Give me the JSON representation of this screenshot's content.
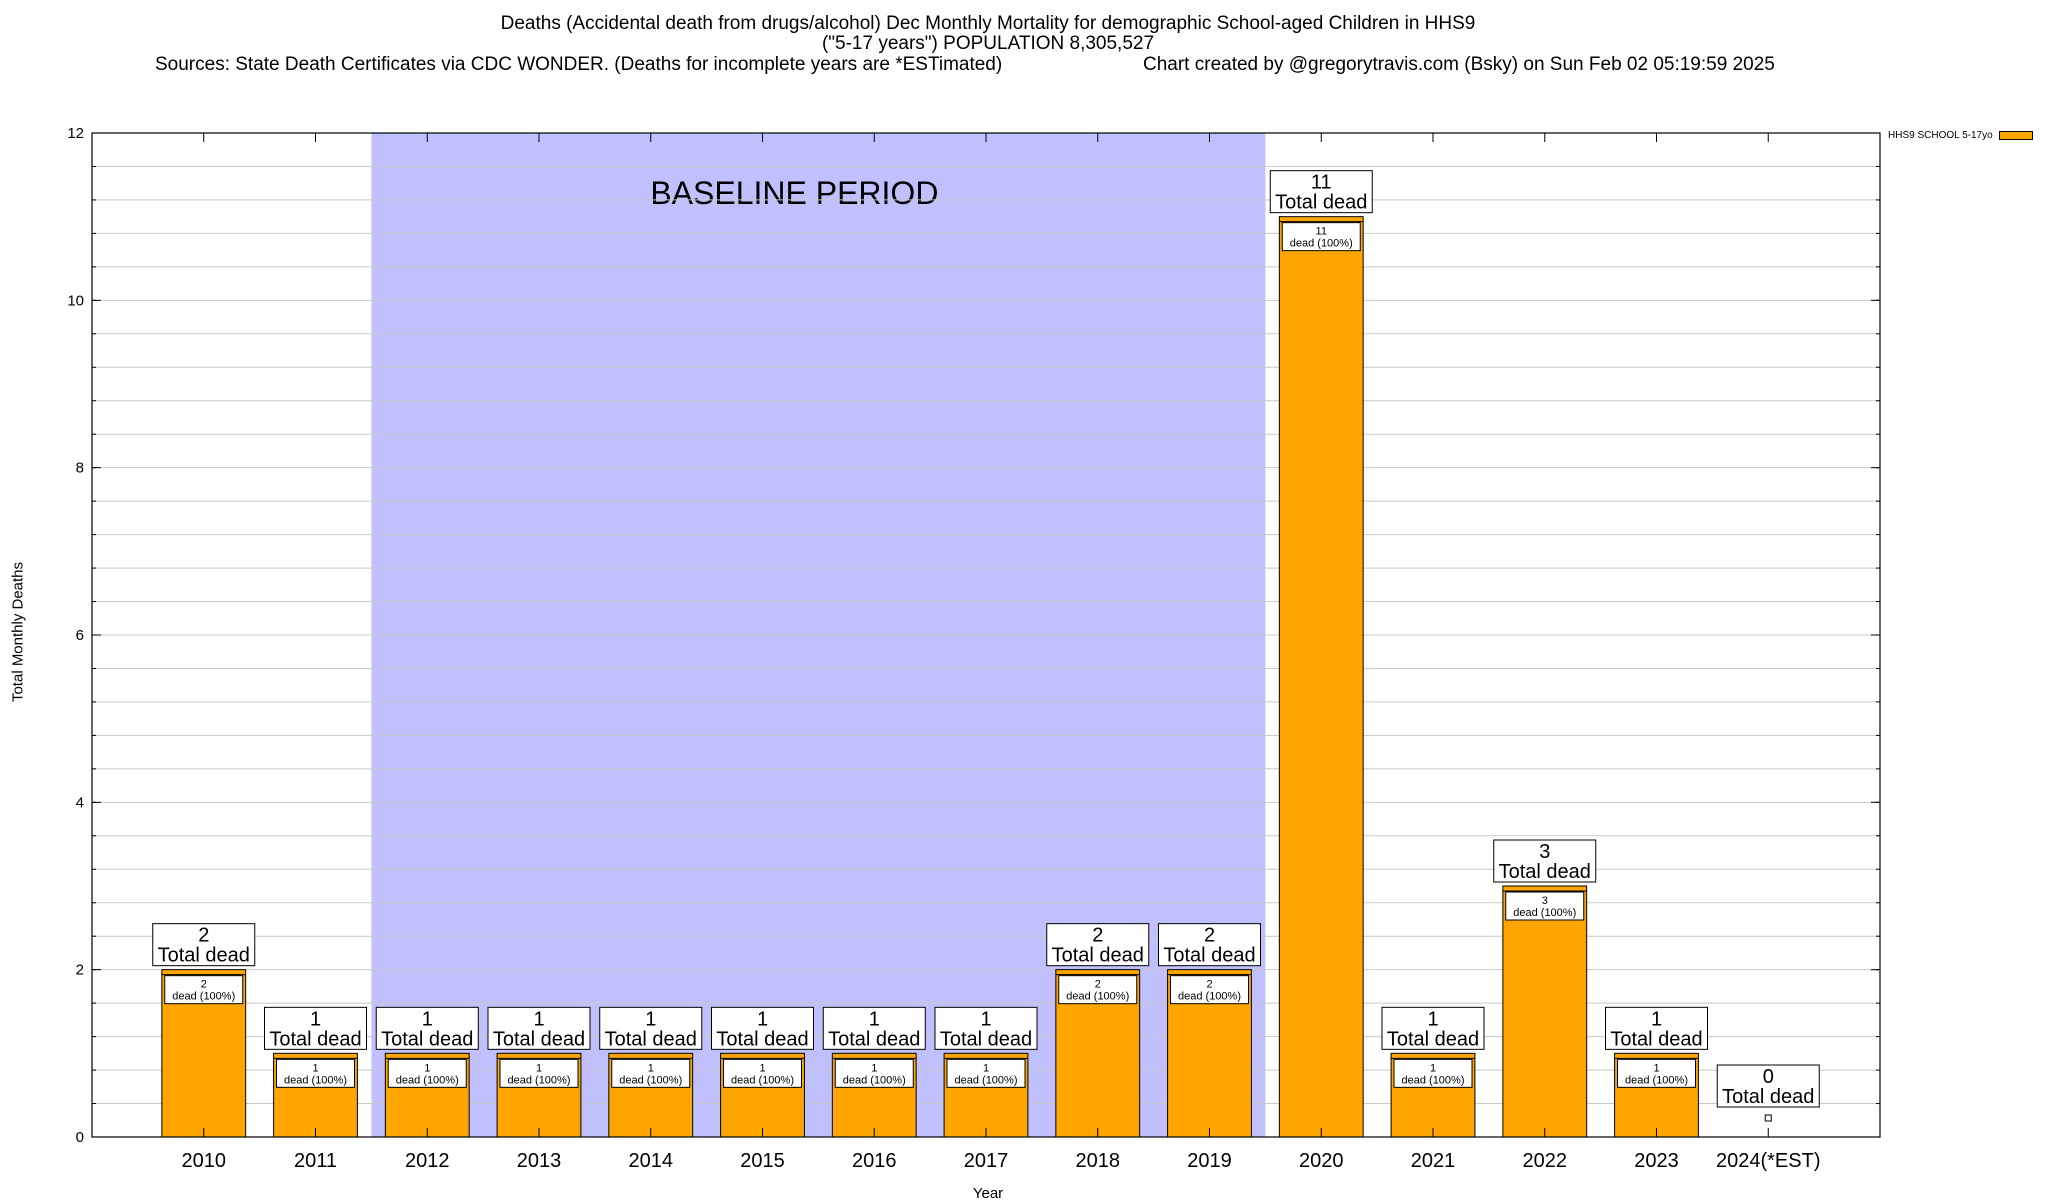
{
  "header": {
    "title_line1": "Deaths (Accidental death from drugs/alcohol) Dec Monthly Mortality for demographic School-aged Children in HHS9",
    "title_line2": "(\"5-17 years\") POPULATION 8,305,527",
    "sources": "Sources: State Death Certificates via CDC WONDER. (Deaths for incomplete years are *ESTimated)",
    "credit": "Chart created by @gregorytravis.com (Bsky) on Sun Feb 02 05:19:59 2025"
  },
  "colors": {
    "bar": "#FFA500",
    "baseline_band": "#C0C0FF",
    "grid": "#C8C8C8"
  },
  "chart_data": {
    "type": "bar",
    "categories": [
      "2010",
      "2011",
      "2012",
      "2013",
      "2014",
      "2015",
      "2016",
      "2017",
      "2018",
      "2019",
      "2020",
      "2021",
      "2022",
      "2023",
      "2024(*EST)"
    ],
    "series": [
      {
        "name": "HHS9 SCHOOL 5-17yo",
        "values": [
          2,
          1,
          1,
          1,
          1,
          1,
          1,
          1,
          2,
          2,
          11,
          1,
          3,
          1,
          0
        ]
      }
    ],
    "xlabel": "Year",
    "ylabel": "Total Monthly Deaths",
    "ylim": [
      0,
      12
    ],
    "yticks": [
      0,
      2,
      4,
      6,
      8,
      10,
      12
    ],
    "minor_grid_step": 0.4,
    "grid": true,
    "legend_position": "top-right",
    "band": {
      "label": "BASELINE PERIOD",
      "from": "2012",
      "to": "2019"
    },
    "total_label_suffix": "Total dead",
    "inner_label_suffix": "dead (100%)"
  }
}
